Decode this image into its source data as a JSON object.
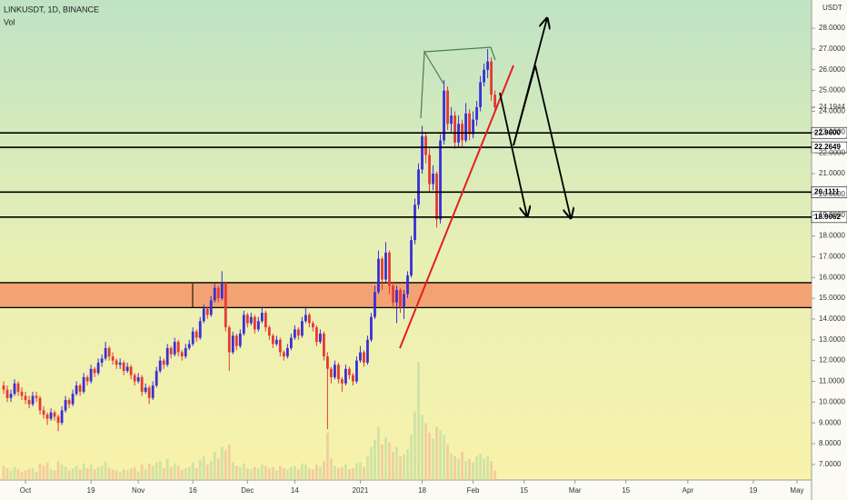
{
  "chart_data": {
    "type": "candlestick",
    "title": "LINKUSDT, 1D, BINANCE",
    "subtitle": "Vol",
    "currency": "USDT",
    "up_color": "#3a2fd6",
    "down_color": "#e53935",
    "volume_up_color": "#c9dfa3",
    "volume_down_color": "#f1c79a",
    "last_price": 24.1944,
    "levels": [
      {
        "value": 22.96,
        "label": "22.9600"
      },
      {
        "value": 22.2649,
        "label": "22.2649"
      },
      {
        "value": 20.1111,
        "label": "20.1111"
      },
      {
        "value": 18.9062,
        "label": "18.9062"
      }
    ],
    "zone": [
      14.55,
      15.75
    ],
    "zone_color": "#f2a273",
    "xlim": [
      -1,
      222
    ],
    "xticks": [
      {
        "value": 6,
        "label": "Oct"
      },
      {
        "value": 24,
        "label": "19"
      },
      {
        "value": 37,
        "label": "Nov"
      },
      {
        "value": 52,
        "label": "16"
      },
      {
        "value": 67,
        "label": "Dec"
      },
      {
        "value": 80,
        "label": "14"
      },
      {
        "value": 98,
        "label": "2021"
      },
      {
        "value": 115,
        "label": "18"
      },
      {
        "value": 129,
        "label": "Feb"
      },
      {
        "value": 143,
        "label": "15"
      },
      {
        "value": 157,
        "label": "Mar"
      },
      {
        "value": 171,
        "label": "15"
      },
      {
        "value": 188,
        "label": "Apr"
      },
      {
        "value": 206,
        "label": "19"
      },
      {
        "value": 218,
        "label": "May"
      }
    ],
    "ylim": [
      6.25,
      29.36
    ],
    "yticks": [
      {
        "value": 7,
        "label": "7.0000"
      },
      {
        "value": 8,
        "label": "8.0000"
      },
      {
        "value": 9,
        "label": "9.0000"
      },
      {
        "value": 10,
        "label": "10.0000"
      },
      {
        "value": 11,
        "label": "11.0000"
      },
      {
        "value": 12,
        "label": "12.0000"
      },
      {
        "value": 13,
        "label": "13.0000"
      },
      {
        "value": 14,
        "label": "14.0000"
      },
      {
        "value": 15,
        "label": "15.0000"
      },
      {
        "value": 16,
        "label": "16.0000"
      },
      {
        "value": 17,
        "label": "17.0000"
      },
      {
        "value": 18,
        "label": "18.0000"
      },
      {
        "value": 19,
        "label": "19.0000"
      },
      {
        "value": 20,
        "label": "20.0000"
      },
      {
        "value": 21,
        "label": "21.0000"
      },
      {
        "value": 22,
        "label": "22.0000"
      },
      {
        "value": 23,
        "label": "23.0000"
      },
      {
        "value": 24,
        "label": "24.0000"
      },
      {
        "value": 25,
        "label": "25.0000"
      },
      {
        "value": 26,
        "label": "26.0000"
      },
      {
        "value": 27,
        "label": "27.0000"
      },
      {
        "value": 28,
        "label": "28.0000"
      }
    ],
    "ohlc": [
      [
        10.8,
        11.0,
        10.4,
        10.6
      ],
      [
        10.6,
        10.8,
        10.0,
        10.2
      ],
      [
        10.2,
        10.6,
        10.0,
        10.4
      ],
      [
        10.4,
        11.1,
        10.3,
        10.9
      ],
      [
        10.9,
        11.0,
        10.3,
        10.5
      ],
      [
        10.5,
        10.7,
        10.1,
        10.3
      ],
      [
        10.3,
        10.5,
        9.9,
        10.1
      ],
      [
        10.1,
        10.3,
        9.7,
        9.9
      ],
      [
        9.9,
        10.5,
        9.8,
        10.3
      ],
      [
        10.3,
        10.5,
        10.0,
        10.2
      ],
      [
        10.2,
        10.3,
        9.4,
        9.6
      ],
      [
        9.6,
        9.8,
        9.2,
        9.4
      ],
      [
        9.4,
        9.5,
        8.9,
        9.2
      ],
      [
        9.2,
        9.7,
        9.1,
        9.5
      ],
      [
        9.5,
        9.6,
        9.1,
        9.3
      ],
      [
        9.3,
        9.4,
        8.6,
        9.0
      ],
      [
        9.0,
        9.8,
        8.9,
        9.6
      ],
      [
        9.6,
        10.3,
        9.5,
        10.1
      ],
      [
        10.1,
        10.2,
        9.7,
        9.9
      ],
      [
        9.9,
        10.6,
        9.8,
        10.4
      ],
      [
        10.4,
        11.0,
        10.3,
        10.8
      ],
      [
        10.8,
        10.9,
        10.3,
        10.5
      ],
      [
        10.5,
        11.4,
        10.4,
        11.2
      ],
      [
        11.2,
        11.3,
        10.8,
        11.0
      ],
      [
        11.0,
        11.8,
        10.9,
        11.6
      ],
      [
        11.6,
        11.7,
        11.2,
        11.4
      ],
      [
        11.4,
        12.1,
        11.3,
        11.9
      ],
      [
        11.9,
        12.3,
        11.7,
        12.1
      ],
      [
        12.1,
        12.9,
        12.0,
        12.6
      ],
      [
        12.6,
        12.7,
        12.0,
        12.2
      ],
      [
        12.2,
        12.4,
        11.8,
        12.0
      ],
      [
        12.0,
        12.1,
        11.6,
        11.8
      ],
      [
        11.8,
        12.1,
        11.6,
        11.9
      ],
      [
        11.9,
        12.0,
        11.3,
        11.5
      ],
      [
        11.5,
        11.9,
        11.4,
        11.7
      ],
      [
        11.7,
        11.8,
        11.1,
        11.3
      ],
      [
        11.3,
        11.4,
        10.8,
        11.0
      ],
      [
        11.0,
        11.4,
        10.9,
        11.2
      ],
      [
        11.2,
        11.3,
        10.3,
        10.5
      ],
      [
        10.5,
        10.9,
        10.4,
        10.7
      ],
      [
        10.7,
        10.8,
        9.9,
        10.2
      ],
      [
        10.2,
        11.0,
        10.1,
        10.8
      ],
      [
        10.8,
        11.7,
        10.7,
        11.5
      ],
      [
        11.5,
        12.2,
        11.4,
        12.0
      ],
      [
        12.0,
        12.1,
        11.6,
        11.8
      ],
      [
        11.8,
        12.8,
        11.7,
        12.6
      ],
      [
        12.6,
        12.7,
        12.1,
        12.3
      ],
      [
        12.3,
        13.1,
        12.2,
        12.9
      ],
      [
        12.9,
        13.0,
        12.2,
        12.4
      ],
      [
        12.4,
        12.5,
        12.0,
        12.2
      ],
      [
        12.2,
        12.8,
        12.1,
        12.6
      ],
      [
        12.6,
        13.0,
        12.5,
        12.8
      ],
      [
        12.8,
        13.6,
        12.7,
        13.4
      ],
      [
        13.4,
        13.5,
        12.9,
        13.1
      ],
      [
        13.1,
        14.1,
        13.0,
        13.9
      ],
      [
        13.9,
        14.7,
        13.8,
        14.5
      ],
      [
        14.5,
        14.6,
        14.0,
        14.2
      ],
      [
        14.2,
        15.1,
        14.1,
        14.9
      ],
      [
        14.9,
        15.7,
        14.8,
        15.5
      ],
      [
        15.5,
        15.6,
        14.8,
        15.0
      ],
      [
        15.0,
        16.3,
        14.9,
        15.7
      ],
      [
        15.7,
        15.8,
        13.4,
        13.6
      ],
      [
        13.6,
        13.7,
        11.5,
        12.4
      ],
      [
        12.4,
        13.4,
        12.3,
        13.2
      ],
      [
        13.2,
        13.3,
        12.5,
        12.7
      ],
      [
        12.7,
        13.5,
        12.6,
        13.3
      ],
      [
        13.3,
        14.4,
        13.2,
        14.2
      ],
      [
        14.2,
        14.3,
        13.6,
        13.8
      ],
      [
        13.8,
        14.3,
        13.7,
        14.1
      ],
      [
        14.1,
        14.2,
        13.3,
        13.5
      ],
      [
        13.5,
        14.1,
        13.4,
        13.9
      ],
      [
        13.9,
        14.6,
        13.8,
        14.3
      ],
      [
        14.3,
        14.4,
        13.4,
        13.6
      ],
      [
        13.6,
        13.7,
        13.0,
        13.2
      ],
      [
        13.2,
        13.3,
        12.6,
        12.8
      ],
      [
        12.8,
        13.2,
        12.7,
        13.0
      ],
      [
        13.0,
        13.1,
        12.2,
        12.4
      ],
      [
        12.4,
        12.5,
        12.0,
        12.2
      ],
      [
        12.2,
        12.8,
        12.1,
        12.6
      ],
      [
        12.6,
        13.3,
        12.5,
        13.1
      ],
      [
        13.1,
        13.7,
        13.0,
        13.5
      ],
      [
        13.5,
        13.6,
        13.0,
        13.2
      ],
      [
        13.2,
        14.1,
        13.1,
        13.9
      ],
      [
        13.9,
        14.6,
        13.8,
        14.2
      ],
      [
        14.2,
        14.3,
        13.6,
        13.8
      ],
      [
        13.8,
        13.9,
        13.4,
        13.6
      ],
      [
        13.6,
        13.7,
        12.7,
        12.9
      ],
      [
        12.9,
        13.5,
        12.8,
        13.3
      ],
      [
        13.3,
        13.4,
        12.0,
        12.2
      ],
      [
        12.2,
        12.4,
        8.7,
        11.6
      ],
      [
        11.6,
        11.7,
        10.9,
        11.2
      ],
      [
        11.2,
        12.0,
        11.1,
        11.8
      ],
      [
        11.8,
        11.9,
        10.9,
        11.1
      ],
      [
        11.1,
        11.2,
        10.5,
        10.9
      ],
      [
        10.9,
        11.8,
        10.8,
        11.6
      ],
      [
        11.6,
        11.7,
        11.1,
        11.3
      ],
      [
        11.3,
        11.4,
        10.8,
        11.0
      ],
      [
        11.0,
        12.2,
        10.9,
        12.0
      ],
      [
        12.0,
        12.7,
        11.9,
        12.4
      ],
      [
        12.4,
        12.5,
        11.7,
        11.9
      ],
      [
        11.9,
        13.2,
        11.8,
        13.0
      ],
      [
        13.0,
        14.3,
        12.9,
        14.1
      ],
      [
        14.1,
        15.6,
        14.0,
        15.3
      ],
      [
        15.3,
        17.3,
        15.2,
        16.9
      ],
      [
        16.9,
        17.0,
        15.4,
        15.9
      ],
      [
        15.9,
        17.7,
        15.8,
        17.2
      ],
      [
        17.2,
        17.3,
        15.2,
        15.6
      ],
      [
        15.6,
        15.8,
        14.5,
        14.8
      ],
      [
        14.8,
        15.6,
        13.8,
        15.4
      ],
      [
        15.4,
        15.5,
        14.3,
        14.6
      ],
      [
        14.6,
        15.4,
        14.0,
        15.2
      ],
      [
        15.2,
        16.3,
        15.0,
        16.1
      ],
      [
        16.1,
        18.0,
        16.0,
        17.8
      ],
      [
        17.8,
        19.8,
        17.6,
        19.5
      ],
      [
        19.5,
        21.5,
        19.3,
        21.2
      ],
      [
        21.2,
        23.3,
        21.0,
        22.8
      ],
      [
        22.8,
        23.0,
        21.5,
        21.9
      ],
      [
        21.9,
        22.2,
        20.1,
        20.5
      ],
      [
        20.5,
        21.4,
        20.2,
        21.0
      ],
      [
        21.0,
        21.1,
        18.4,
        18.8
      ],
      [
        18.8,
        22.9,
        18.6,
        22.6
      ],
      [
        22.6,
        25.5,
        22.4,
        25.0
      ],
      [
        25.0,
        25.2,
        23.1,
        23.4
      ],
      [
        23.4,
        24.2,
        23.0,
        23.8
      ],
      [
        23.8,
        24.0,
        22.2,
        22.5
      ],
      [
        22.5,
        23.8,
        22.3,
        23.4
      ],
      [
        23.4,
        23.6,
        22.3,
        22.6
      ],
      [
        22.6,
        24.4,
        22.5,
        23.9
      ],
      [
        23.9,
        24.1,
        22.6,
        22.9
      ],
      [
        22.9,
        24.0,
        22.7,
        23.6
      ],
      [
        23.6,
        24.5,
        23.3,
        24.2
      ],
      [
        24.2,
        25.7,
        24.0,
        25.4
      ],
      [
        25.4,
        26.3,
        25.2,
        26.0
      ],
      [
        26.0,
        27.0,
        25.6,
        26.4
      ],
      [
        26.4,
        26.6,
        24.5,
        24.8
      ],
      [
        24.8,
        25.0,
        23.9,
        24.2
      ]
    ],
    "volume": [
      12,
      10,
      8,
      11,
      9,
      7,
      8,
      9,
      10,
      7,
      14,
      12,
      15,
      9,
      8,
      16,
      13,
      11,
      8,
      10,
      12,
      9,
      14,
      10,
      13,
      9,
      11,
      12,
      16,
      10,
      9,
      8,
      7,
      9,
      8,
      10,
      11,
      7,
      13,
      9,
      14,
      12,
      15,
      16,
      10,
      18,
      11,
      14,
      12,
      9,
      10,
      11,
      15,
      10,
      17,
      20,
      13,
      16,
      24,
      18,
      28,
      25,
      30,
      15,
      12,
      11,
      14,
      10,
      9,
      11,
      10,
      13,
      12,
      10,
      11,
      8,
      12,
      10,
      9,
      11,
      12,
      9,
      14,
      13,
      10,
      9,
      13,
      11,
      16,
      40,
      18,
      12,
      10,
      11,
      13,
      9,
      10,
      14,
      15,
      11,
      20,
      28,
      34,
      45,
      30,
      36,
      32,
      24,
      28,
      20,
      22,
      26,
      38,
      58,
      100,
      55,
      48,
      40,
      35,
      45,
      42,
      38,
      30,
      22,
      20,
      18,
      24,
      16,
      18,
      15,
      20,
      22,
      18,
      20,
      16,
      8
    ]
  }
}
